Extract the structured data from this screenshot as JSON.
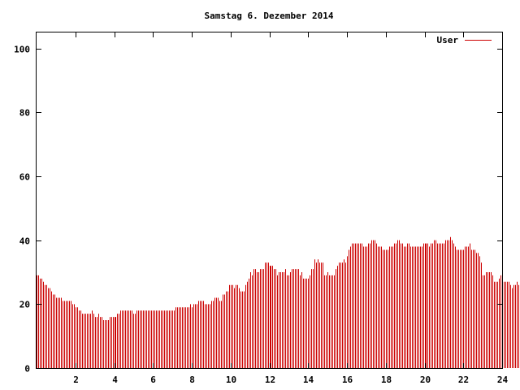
{
  "chart_data": {
    "type": "bar",
    "title": "Samstag 6. Dezember 2014",
    "xlabel": "",
    "ylabel": "",
    "xlim": [
      0,
      24
    ],
    "ylim": [
      0,
      105
    ],
    "xticks": [
      2,
      4,
      6,
      8,
      10,
      12,
      14,
      16,
      18,
      20,
      22,
      24
    ],
    "yticks": [
      0,
      20,
      40,
      60,
      80,
      100
    ],
    "grid": false,
    "legend_position": "top-right",
    "bar_color": "#cc0000",
    "interval_minutes": 5,
    "series": [
      {
        "name": "User",
        "color": "#cc0000",
        "values": [
          29,
          29,
          28,
          28,
          27,
          26,
          26,
          25,
          25,
          24,
          23,
          23,
          22,
          22,
          22,
          22,
          21,
          21,
          21,
          21,
          21,
          21,
          20,
          20,
          19,
          19,
          18,
          18,
          17,
          17,
          17,
          17,
          17,
          17,
          18,
          17,
          16,
          16,
          17,
          16,
          16,
          15,
          15,
          15,
          15,
          16,
          16,
          16,
          16,
          16,
          17,
          17,
          18,
          18,
          18,
          18,
          18,
          18,
          18,
          18,
          17,
          17,
          18,
          18,
          18,
          18,
          18,
          18,
          18,
          18,
          18,
          18,
          18,
          18,
          18,
          18,
          18,
          18,
          18,
          18,
          18,
          18,
          18,
          18,
          18,
          18,
          19,
          19,
          19,
          19,
          19,
          19,
          19,
          19,
          19,
          20,
          19,
          20,
          20,
          20,
          21,
          21,
          21,
          21,
          20,
          20,
          20,
          20,
          21,
          21,
          22,
          22,
          22,
          21,
          21,
          23,
          23,
          24,
          24,
          26,
          26,
          26,
          25,
          26,
          26,
          25,
          24,
          24,
          24,
          26,
          27,
          28,
          30,
          29,
          31,
          31,
          30,
          30,
          31,
          31,
          31,
          33,
          33,
          33,
          32,
          32,
          32,
          31,
          31,
          29,
          30,
          30,
          30,
          30,
          31,
          29,
          29,
          30,
          31,
          31,
          31,
          31,
          31,
          29,
          30,
          28,
          28,
          28,
          28,
          29,
          31,
          31,
          34,
          33,
          34,
          33,
          33,
          33,
          29,
          29,
          30,
          29,
          29,
          29,
          29,
          31,
          32,
          33,
          33,
          33,
          34,
          33,
          35,
          37,
          38,
          39,
          39,
          39,
          39,
          39,
          39,
          39,
          38,
          38,
          38,
          39,
          39,
          40,
          40,
          40,
          39,
          38,
          38,
          38,
          37,
          37,
          37,
          37,
          38,
          38,
          38,
          39,
          39,
          40,
          40,
          39,
          39,
          38,
          38,
          39,
          39,
          38,
          38,
          38,
          38,
          38,
          38,
          38,
          38,
          39,
          39,
          39,
          39,
          38,
          39,
          39,
          40,
          40,
          39,
          39,
          39,
          39,
          39,
          40,
          40,
          40,
          41,
          40,
          39,
          38,
          37,
          37,
          37,
          37,
          37,
          38,
          38,
          38,
          39,
          37,
          37,
          37,
          36,
          36,
          35,
          33,
          29,
          29,
          30,
          30,
          30,
          30,
          29,
          27,
          27,
          27,
          28,
          29,
          28,
          27,
          27,
          27,
          27,
          26,
          25,
          26,
          26,
          27,
          26,
          27
        ]
      }
    ]
  }
}
